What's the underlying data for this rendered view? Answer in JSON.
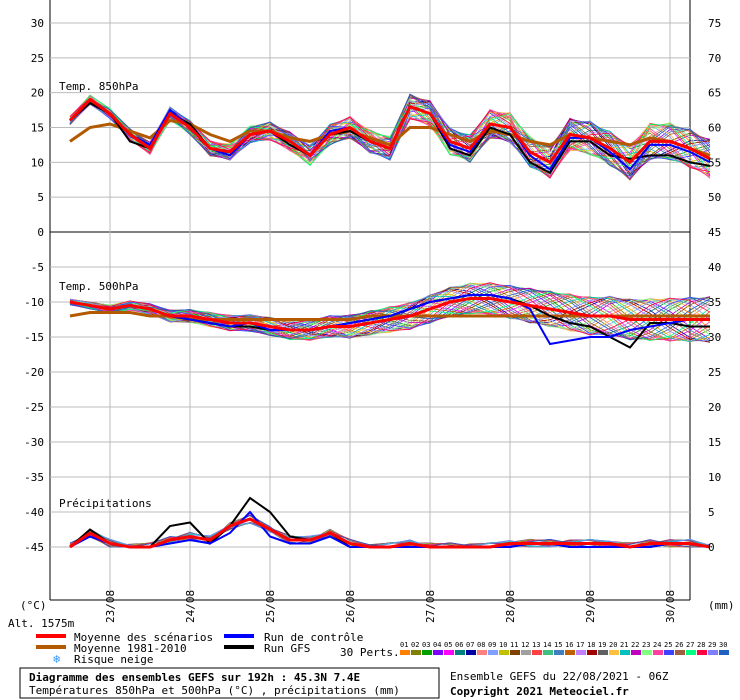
{
  "chart_data": {
    "type": "line",
    "title": "Diagramme des ensembles GEFS sur 192h : 45.3N 7.4E",
    "subtitle": "Températures 850hPa et 500hPa (°C) , précipitations (mm)",
    "run_info": "Ensemble GEFS du 22/08/2021 - 06Z",
    "copyright": "Copyright 2021 Meteociel.fr",
    "altitude": "Alt. 1575m",
    "left_unit": "(°C)",
    "right_unit": "(mm)",
    "x_labels": [
      "23/08",
      "24/08",
      "25/08",
      "26/08",
      "27/08",
      "28/08",
      "29/08",
      "30/08"
    ],
    "top_panel": {
      "label": "Temp. 850hPa",
      "left_ticks": [
        "30",
        "25",
        "20",
        "15",
        "10",
        "5",
        "0"
      ],
      "right_ticks": [
        "75",
        "70",
        "65",
        "60",
        "55",
        "50"
      ],
      "ylim": [
        0,
        30
      ],
      "series": [
        {
          "name": "Moyenne des scénarios",
          "color": "#ff0000",
          "values": [
            16,
            19,
            17,
            14,
            12,
            17,
            15,
            12,
            11.5,
            14,
            14.5,
            13,
            11,
            14,
            15,
            13,
            12,
            18,
            17,
            13,
            12,
            15.5,
            15,
            11.5,
            10,
            14,
            13.5,
            12,
            10,
            13,
            13,
            12,
            10.5
          ]
        },
        {
          "name": "Moyenne 1981-2010",
          "color": "#b35a00",
          "values": [
            13,
            15,
            15.5,
            14.5,
            13.5,
            16,
            15.5,
            14,
            13,
            14.5,
            14.5,
            13.5,
            13,
            14,
            14.5,
            13.5,
            12.5,
            15,
            15,
            14,
            13,
            14.5,
            14,
            13,
            12.5,
            14,
            13.5,
            13,
            12.5,
            13.5,
            13,
            12,
            11
          ]
        },
        {
          "name": "Run de contrôle",
          "color": "#0000ff",
          "values": [
            16,
            19,
            17,
            14,
            12.5,
            17.5,
            15,
            12,
            11,
            14,
            14.5,
            13,
            11,
            14.5,
            15,
            13,
            12,
            18,
            17,
            12.5,
            11.5,
            15.5,
            15,
            11,
            9,
            13.5,
            13.5,
            11.5,
            9,
            12.5,
            12.5,
            11.5,
            10
          ]
        },
        {
          "name": "Run GFS",
          "color": "#000000",
          "values": [
            16,
            18.5,
            17,
            13,
            12,
            17,
            15.5,
            12,
            11,
            14,
            14.5,
            12.5,
            11,
            14,
            14.5,
            13,
            12,
            18,
            17,
            12,
            11,
            15,
            14,
            10,
            8.5,
            13,
            13,
            11,
            10.5,
            11,
            11,
            10,
            9.5
          ]
        }
      ]
    },
    "bottom_panel": {
      "label_temp": "Temp. 500hPa",
      "label_precip": "Précipitations",
      "left_ticks": [
        "-5",
        "-10",
        "-15",
        "-20",
        "-25",
        "-30",
        "-35",
        "-40",
        "-45"
      ],
      "right_ticks": [
        "45",
        "40",
        "35",
        "30",
        "25",
        "20",
        "15",
        "10",
        "5",
        "0"
      ],
      "temp_ylim": [
        -45,
        0
      ],
      "precip_ylim": [
        0,
        45
      ],
      "temp_series": [
        {
          "name": "Moyenne des scénarios",
          "color": "#ff0000",
          "values": [
            -10,
            -10.5,
            -11,
            -10.5,
            -11,
            -12,
            -12,
            -12.5,
            -13,
            -13,
            -13.5,
            -14,
            -14,
            -13.5,
            -13.5,
            -13,
            -12.5,
            -12,
            -11,
            -10,
            -9.5,
            -9.5,
            -10,
            -10.5,
            -11,
            -11.5,
            -12,
            -12,
            -12.5,
            -12.5,
            -12.5,
            -12.5,
            -12.5
          ]
        },
        {
          "name": "Moyenne 1981-2010",
          "color": "#b35a00",
          "values": [
            -12,
            -11.5,
            -11.5,
            -11.5,
            -12,
            -12,
            -12.5,
            -12.5,
            -12.5,
            -12.5,
            -12.5,
            -12.5,
            -12.5,
            -12.5,
            -12.5,
            -12,
            -12,
            -12,
            -12,
            -12,
            -12,
            -12,
            -12,
            -12,
            -12,
            -12,
            -12,
            -12,
            -12,
            -12,
            -12,
            -12,
            -12
          ]
        },
        {
          "name": "Run de contrôle",
          "color": "#0000ff",
          "values": [
            -10,
            -10.5,
            -11,
            -10.5,
            -11,
            -12,
            -12.5,
            -13,
            -13.5,
            -13,
            -14,
            -14,
            -14,
            -13.5,
            -13,
            -12.5,
            -12,
            -11,
            -10,
            -9.5,
            -9,
            -9,
            -9.5,
            -11,
            -16,
            -15.5,
            -15,
            -15,
            -14,
            -13.5,
            -13,
            -12.5,
            -12.5
          ]
        },
        {
          "name": "Run GFS",
          "color": "#000000",
          "values": [
            -10,
            -10.5,
            -11,
            -10.5,
            -11,
            -12,
            -12.5,
            -13,
            -13.5,
            -13.5,
            -14,
            -14,
            -14,
            -13.5,
            -13,
            -12.5,
            -12,
            -11,
            -10,
            -9.5,
            -9,
            -9,
            -9.5,
            -10.5,
            -12,
            -13,
            -13.5,
            -15,
            -16.5,
            -13,
            -13,
            -13.5,
            -13.5
          ]
        }
      ],
      "precip_series": [
        {
          "name": "Moyenne des scénarios",
          "color": "#ff0000",
          "values": [
            0,
            2,
            0.5,
            0,
            0,
            1,
            1.5,
            1,
            3,
            4,
            2.5,
            1,
            1,
            2,
            0.5,
            0,
            0,
            0.5,
            0,
            0,
            0,
            0,
            0.5,
            0.5,
            0.5,
            0.5,
            0.5,
            0.5,
            0,
            0.5,
            0.5,
            0.5,
            0
          ]
        },
        {
          "name": "Run de contrôle",
          "color": "#0000ff",
          "values": [
            0,
            1.5,
            0.5,
            0,
            0,
            0.5,
            1,
            0.5,
            2,
            5,
            1.5,
            0.5,
            0.5,
            1.5,
            0,
            0,
            0,
            0,
            0,
            0,
            0,
            0,
            0,
            0.5,
            0.5,
            0,
            0,
            0,
            0,
            0,
            0.5,
            0.5,
            0
          ]
        },
        {
          "name": "Run GFS",
          "color": "#000000",
          "values": [
            0,
            2.5,
            0.5,
            0,
            0,
            3,
            3.5,
            0.5,
            3,
            7,
            5,
            1.5,
            1,
            2,
            0,
            0,
            0,
            0,
            0,
            0,
            0,
            0,
            0,
            0.5,
            0.5,
            0,
            0,
            0,
            0,
            0,
            0.5,
            0.5,
            0
          ]
        }
      ]
    },
    "perturbations": {
      "label": "30 Perts.",
      "codes": [
        "01",
        "02",
        "03",
        "04",
        "05",
        "06",
        "07",
        "08",
        "09",
        "10",
        "11",
        "12",
        "13",
        "14",
        "15",
        "16",
        "17",
        "18",
        "19",
        "20",
        "21",
        "22",
        "23",
        "24",
        "25",
        "26",
        "27",
        "28",
        "29",
        "30"
      ],
      "colors": [
        "#ff8000",
        "#808000",
        "#00a000",
        "#8000ff",
        "#ff00ff",
        "#008080",
        "#0000a0",
        "#ff8080",
        "#80a0ff",
        "#c0c000",
        "#804000",
        "#a0a0a0",
        "#ff4040",
        "#40c080",
        "#4080c0",
        "#c06000",
        "#c080ff",
        "#a00000",
        "#606060",
        "#ffc040",
        "#00c0c0",
        "#c000c0",
        "#80ff80",
        "#ff40a0",
        "#4040ff",
        "#a06040",
        "#00ff80",
        "#ff0040",
        "#8080ff",
        "#2060c0"
      ]
    },
    "legend": {
      "mean": "Moyenne des scénarios",
      "clim": "Moyenne 1981-2010",
      "snow": "Risque neige",
      "control": "Run de contrôle",
      "gfs": "Run GFS"
    }
  }
}
